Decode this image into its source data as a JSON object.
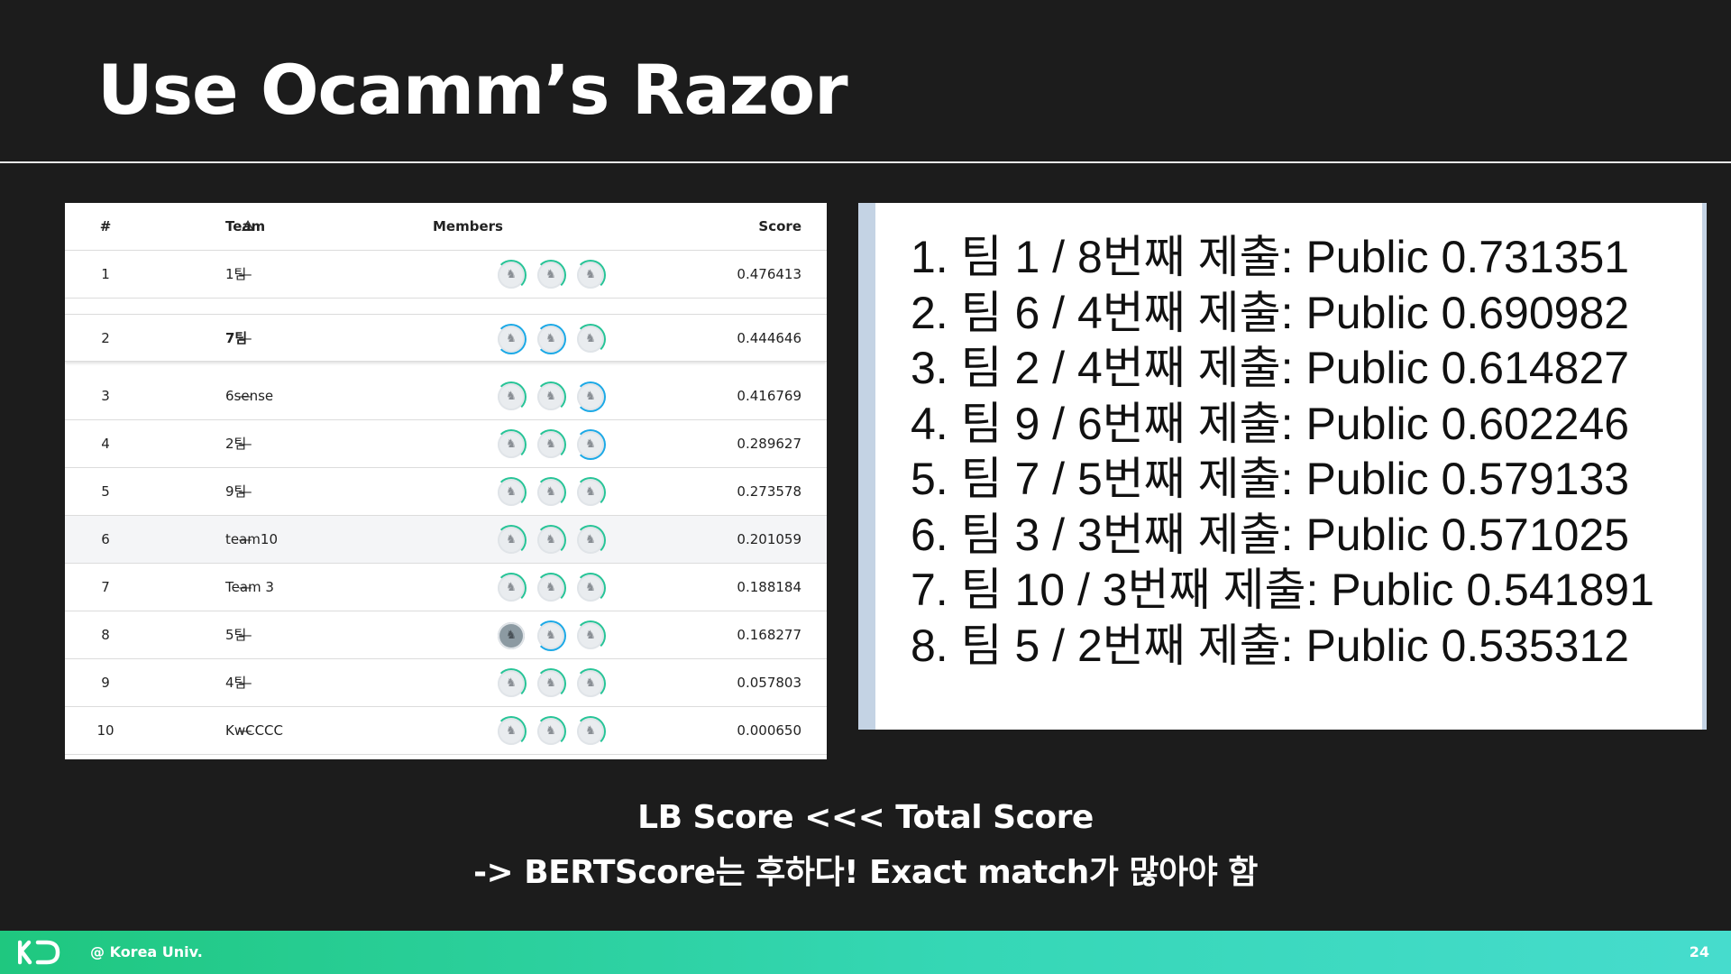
{
  "slide": {
    "title": "Use Ocamm’s Razor",
    "caption_line1": "LB Score <<< Total Score",
    "caption_line2": "-> BERTScore는 후하다! Exact match가 많아야 함",
    "footer_org": "@ Korea Univ.",
    "page_number": "24"
  },
  "leaderboard": {
    "headers": {
      "rank": "#",
      "team": "Team",
      "members": "Members",
      "score": "Score"
    },
    "rows": [
      {
        "rank": "1",
        "delta": "—",
        "team": "1팀",
        "score": "0.476413",
        "avatars": [
          "g",
          "g",
          "g"
        ]
      },
      {
        "rank": "2",
        "delta": "—",
        "team": "7팀",
        "score": "0.444646",
        "avatars": [
          "b",
          "b",
          "g"
        ]
      },
      {
        "rank": "3",
        "delta": "—",
        "team": "6sense",
        "score": "0.416769",
        "avatars": [
          "g",
          "g",
          "b"
        ]
      },
      {
        "rank": "4",
        "delta": "—",
        "team": "2팀",
        "score": "0.289627",
        "avatars": [
          "g",
          "g",
          "b"
        ]
      },
      {
        "rank": "5",
        "delta": "—",
        "team": "9팀",
        "score": "0.273578",
        "avatars": [
          "g",
          "g",
          "g"
        ]
      },
      {
        "rank": "6",
        "delta": "—",
        "team": "team10",
        "score": "0.201059",
        "avatars": [
          "g",
          "g",
          "g"
        ]
      },
      {
        "rank": "7",
        "delta": "—",
        "team": "Team 3",
        "score": "0.188184",
        "avatars": [
          "g",
          "g",
          "g"
        ]
      },
      {
        "rank": "8",
        "delta": "—",
        "team": "5팀",
        "score": "0.168277",
        "avatars": [
          "photo",
          "b",
          "g"
        ]
      },
      {
        "rank": "9",
        "delta": "—",
        "team": "4팀",
        "score": "0.057803",
        "avatars": [
          "g",
          "g",
          "g"
        ]
      },
      {
        "rank": "10",
        "delta": "—",
        "team": "KwCCCC",
        "score": "0.000650",
        "avatars": [
          "g",
          "g",
          "g"
        ]
      }
    ]
  },
  "ranking_list": [
    "1. 팀 1 / 8번째 제출: Public 0.731351",
    "2. 팀 6 / 4번째 제출: Public 0.690982",
    "3. 팀 2 / 4번째 제출: Public 0.614827",
    "4. 팀 9 / 6번째 제출: Public 0.602246",
    "5. 팀 7 / 5번째 제출: Public 0.579133",
    "6. 팀 3 / 3번째 제출: Public 0.571025",
    "7. 팀 10 / 3번째 제출: Public 0.541891",
    "8. 팀 5 / 2번째 제출: Public 0.535312"
  ],
  "colors": {
    "footer_start": "#1fc77f",
    "footer_end": "#46dccd",
    "ring_green": "#27c497",
    "ring_blue": "#1ca9e6"
  },
  "icons": {
    "delta_header": "triangle-up-icon",
    "avatar": "llama-avatar-icon",
    "logo": "kd-logo-icon"
  }
}
